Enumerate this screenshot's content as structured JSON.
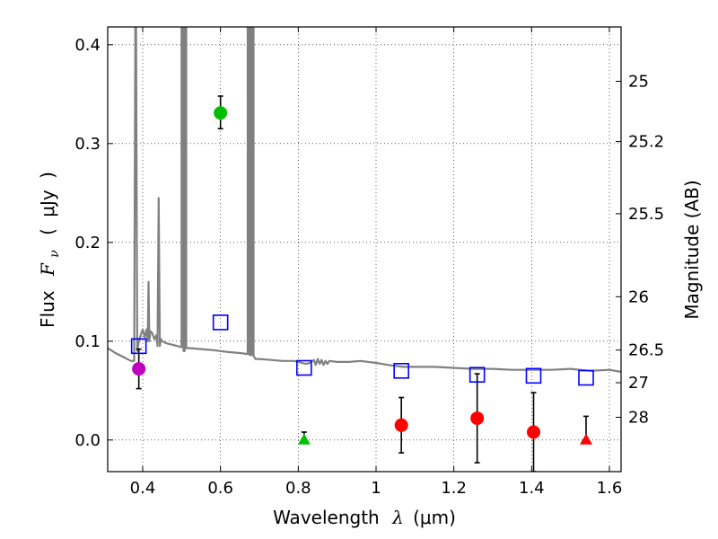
{
  "chart_data": {
    "type": "scatter",
    "title": "",
    "xlabel_main": "Wavelength",
    "xlabel_symbol": "λ",
    "xlabel_unit": "(μm)",
    "ylabel_main": "Flux",
    "ylabel_symbol": "F",
    "ylabel_subscript": "ν",
    "ylabel_unit_open": "(",
    "ylabel_unit": "μJy",
    "ylabel_unit_close": ")",
    "y2label": "Magnitude (AB)",
    "xlim": [
      0.31,
      1.63
    ],
    "ylim": [
      -0.032,
      0.418
    ],
    "grid": true,
    "x_ticks": [
      0.4,
      0.6,
      0.8,
      1.0,
      1.2,
      1.4,
      1.6
    ],
    "x_tick_labels": [
      "0.4",
      "0.6",
      "0.8",
      "1",
      "1.2",
      "1.4",
      "1.6"
    ],
    "y_ticks": [
      0.0,
      0.1,
      0.2,
      0.3,
      0.4
    ],
    "y_tick_labels": [
      "0.0",
      "0.1",
      "0.2",
      "0.3",
      "0.4"
    ],
    "y2_ticks": [
      {
        "label": "25",
        "flux": 0.363
      },
      {
        "label": "25.2",
        "flux": 0.302
      },
      {
        "label": "25.5",
        "flux": 0.229
      },
      {
        "label": "26",
        "flux": 0.145
      },
      {
        "label": "26.5",
        "flux": 0.091
      },
      {
        "label": "27",
        "flux": 0.058
      },
      {
        "label": "28",
        "flux": 0.023
      }
    ],
    "series": [
      {
        "name": "model-spectrum",
        "kind": "line",
        "color": "#808080",
        "x": [
          0.31,
          0.33,
          0.35,
          0.37,
          0.378,
          0.381,
          0.383,
          0.386,
          0.39,
          0.395,
          0.4,
          0.405,
          0.41,
          0.413,
          0.415,
          0.417,
          0.42,
          0.425,
          0.43,
          0.435,
          0.438,
          0.441,
          0.444,
          0.447,
          0.45,
          0.46,
          0.48,
          0.5,
          0.5,
          0.505,
          0.505,
          0.508,
          0.508,
          0.512,
          0.512,
          0.52,
          0.55,
          0.58,
          0.6,
          0.62,
          0.65,
          0.67,
          0.67,
          0.675,
          0.675,
          0.68,
          0.68,
          0.685,
          0.685,
          0.69,
          0.7,
          0.73,
          0.76,
          0.79,
          0.8,
          0.82,
          0.83,
          0.84,
          0.845,
          0.85,
          0.855,
          0.86,
          0.865,
          0.87,
          0.875,
          0.88,
          0.9,
          0.93,
          0.96,
          1.0,
          1.03,
          1.05,
          1.07,
          1.1,
          1.15,
          1.2,
          1.25,
          1.3,
          1.35,
          1.4,
          1.45,
          1.5,
          1.55,
          1.6,
          1.63
        ],
        "values": [
          0.093,
          0.088,
          0.084,
          0.08,
          0.08,
          0.418,
          0.418,
          0.09,
          0.1,
          0.106,
          0.112,
          0.104,
          0.112,
          0.1,
          0.16,
          0.1,
          0.11,
          0.108,
          0.102,
          0.106,
          0.095,
          0.245,
          0.095,
          0.102,
          0.1,
          0.098,
          0.096,
          0.094,
          0.418,
          0.418,
          0.09,
          0.09,
          0.418,
          0.418,
          0.093,
          0.093,
          0.092,
          0.091,
          0.09,
          0.089,
          0.088,
          0.087,
          0.418,
          0.418,
          0.086,
          0.086,
          0.418,
          0.418,
          0.085,
          0.082,
          0.082,
          0.081,
          0.08,
          0.08,
          0.079,
          0.077,
          0.078,
          0.081,
          0.076,
          0.082,
          0.077,
          0.081,
          0.076,
          0.08,
          0.077,
          0.08,
          0.079,
          0.079,
          0.08,
          0.078,
          0.076,
          0.075,
          0.074,
          0.074,
          0.074,
          0.073,
          0.072,
          0.072,
          0.071,
          0.071,
          0.071,
          0.072,
          0.07,
          0.071,
          0.069
        ]
      },
      {
        "name": "model-photometry",
        "kind": "open-square",
        "color": "#0000ff",
        "x": [
          0.39,
          0.6,
          0.815,
          1.065,
          1.26,
          1.405,
          1.54
        ],
        "values": [
          0.095,
          0.119,
          0.073,
          0.07,
          0.066,
          0.065,
          0.063
        ]
      },
      {
        "name": "detections",
        "kind": "filled-circle",
        "x": [
          0.39,
          0.6,
          1.065,
          1.26,
          1.405
        ],
        "values": [
          0.072,
          0.331,
          0.015,
          0.022,
          0.008
        ],
        "err_low": [
          0.02,
          0.016,
          0.028,
          0.045,
          0.04
        ],
        "err_high": [
          0.02,
          0.017,
          0.028,
          0.045,
          0.04
        ],
        "colors": [
          "#bf00bf",
          "#00bf00",
          "#ff0000",
          "#ff0000",
          "#ff0000"
        ]
      },
      {
        "name": "upper-limits",
        "kind": "filled-triangle",
        "x": [
          0.815,
          1.54
        ],
        "values": [
          0.0,
          0.0
        ],
        "err_high": [
          0.008,
          0.024
        ],
        "colors": [
          "#00bf00",
          "#ff0000"
        ]
      }
    ]
  }
}
